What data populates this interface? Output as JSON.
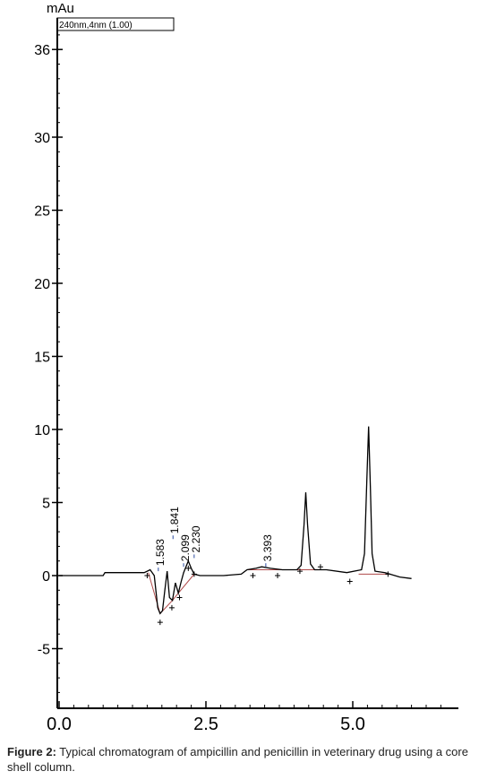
{
  "chart_data": {
    "type": "line",
    "ylabel": "mAu",
    "detector_label": "240nm,4nm (1.00)",
    "xlim": [
      0.0,
      6.8
    ],
    "ylim": [
      -9,
      38
    ],
    "xticks": [
      "0.0",
      "2.5",
      "5.0"
    ],
    "xtick_values": [
      0.0,
      2.5,
      5.0
    ],
    "yticks": [
      "36",
      "30",
      "25",
      "20",
      "15",
      "10",
      "5",
      "0",
      "-5"
    ],
    "ytick_values": [
      36,
      30,
      25,
      20,
      15,
      10,
      5,
      0,
      -5
    ],
    "peak_labels": [
      {
        "text": "1.583",
        "x": 1.72,
        "y": 0.3
      },
      {
        "text": "1.841",
        "x": 1.97,
        "y": 2.5
      },
      {
        "text": "2.099",
        "x": 2.15,
        "y": 0.6
      },
      {
        "text": "2.230",
        "x": 2.33,
        "y": 1.2
      },
      {
        "text": "3.393",
        "x": 3.55,
        "y": 0.6
      }
    ],
    "series": [
      {
        "values": [
          [
            0.0,
            0.0
          ],
          [
            0.75,
            0.0
          ],
          [
            0.78,
            0.2
          ],
          [
            1.45,
            0.2
          ],
          [
            1.55,
            0.4
          ],
          [
            1.62,
            0.0
          ],
          [
            1.68,
            -2.2
          ],
          [
            1.72,
            -2.6
          ],
          [
            1.76,
            -2.4
          ],
          [
            1.8,
            -1.0
          ],
          [
            1.84,
            0.3
          ],
          [
            1.88,
            -1.5
          ],
          [
            1.93,
            -1.7
          ],
          [
            1.98,
            -0.5
          ],
          [
            2.03,
            -1.2
          ],
          [
            2.08,
            -0.4
          ],
          [
            2.12,
            0.2
          ],
          [
            2.16,
            0.6
          ],
          [
            2.2,
            1.0
          ],
          [
            2.25,
            0.5
          ],
          [
            2.3,
            0.1
          ],
          [
            2.4,
            0.0
          ],
          [
            2.6,
            0.0
          ],
          [
            2.8,
            0.0
          ],
          [
            3.1,
            0.1
          ],
          [
            3.2,
            0.4
          ],
          [
            3.35,
            0.5
          ],
          [
            3.45,
            0.6
          ],
          [
            3.6,
            0.5
          ],
          [
            3.8,
            0.4
          ],
          [
            4.05,
            0.4
          ],
          [
            4.12,
            0.7
          ],
          [
            4.17,
            3.5
          ],
          [
            4.2,
            5.7
          ],
          [
            4.23,
            3.5
          ],
          [
            4.28,
            0.8
          ],
          [
            4.35,
            0.4
          ],
          [
            4.55,
            0.4
          ],
          [
            4.9,
            0.2
          ],
          [
            5.15,
            0.4
          ],
          [
            5.2,
            1.5
          ],
          [
            5.24,
            6.5
          ],
          [
            5.27,
            10.2
          ],
          [
            5.3,
            6.0
          ],
          [
            5.33,
            1.5
          ],
          [
            5.38,
            0.3
          ],
          [
            5.55,
            0.2
          ],
          [
            5.8,
            -0.1
          ],
          [
            6.0,
            -0.2
          ]
        ]
      }
    ]
  },
  "caption": {
    "label": "Figure 2:",
    "text": " Typical chromatogram of ampicillin and penicillin in veterinary drug using a core shell column."
  }
}
